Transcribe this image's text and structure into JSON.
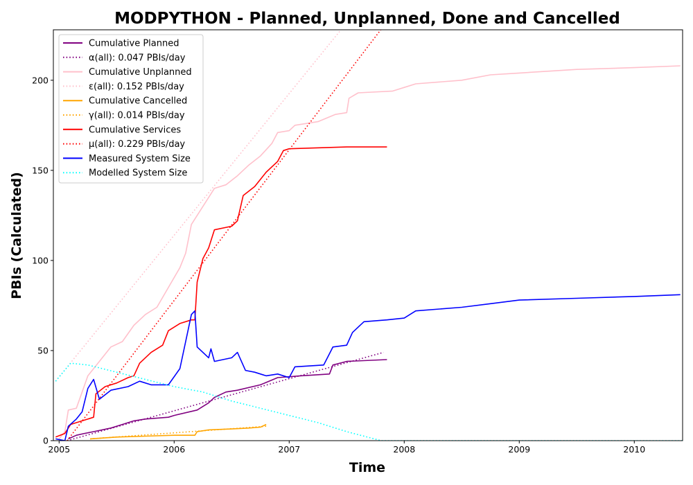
{
  "chart_data": {
    "type": "line",
    "title": "MODPYTHON - Planned, Unplanned, Done  and Cancelled",
    "xlabel": "Time",
    "ylabel": "PBIs (Calculated)",
    "xlim": [
      2004.95,
      2010.42
    ],
    "ylim": [
      0,
      228
    ],
    "x_ticks": [
      2005,
      2006,
      2007,
      2008,
      2009,
      2010
    ],
    "x_tick_labels": [
      "2005",
      "2006",
      "2007",
      "2008",
      "2009",
      "2010"
    ],
    "y_ticks": [
      0,
      50,
      100,
      150,
      200
    ],
    "y_tick_labels": [
      "0",
      "50",
      "100",
      "150",
      "200"
    ],
    "grid": false,
    "legend_position": "top-left",
    "series": [
      {
        "name": "Cumulative Planned",
        "color": "#800080",
        "style": "solid",
        "points": [
          [
            2005.08,
            1
          ],
          [
            2005.15,
            3
          ],
          [
            2005.22,
            4
          ],
          [
            2005.3,
            5
          ],
          [
            2005.45,
            7
          ],
          [
            2005.55,
            9
          ],
          [
            2005.65,
            11
          ],
          [
            2005.75,
            12
          ],
          [
            2005.95,
            13
          ],
          [
            2006.0,
            14
          ],
          [
            2006.2,
            17
          ],
          [
            2006.3,
            21
          ],
          [
            2006.35,
            24
          ],
          [
            2006.45,
            27
          ],
          [
            2006.55,
            28
          ],
          [
            2006.75,
            31
          ],
          [
            2006.9,
            35
          ],
          [
            2007.1,
            36
          ],
          [
            2007.35,
            37
          ],
          [
            2007.38,
            42
          ],
          [
            2007.5,
            44
          ],
          [
            2007.85,
            45
          ]
        ]
      },
      {
        "name": "α(all): 0.047 PBIs/day",
        "color": "#800080",
        "style": "dotted",
        "points": [
          [
            2005.07,
            0
          ],
          [
            2007.82,
            49
          ]
        ]
      },
      {
        "name": "Cumulative Unplanned",
        "color": "#ffc0cb",
        "style": "solid",
        "points": [
          [
            2005.0,
            1
          ],
          [
            2005.05,
            5
          ],
          [
            2005.08,
            17
          ],
          [
            2005.15,
            18
          ],
          [
            2005.2,
            27
          ],
          [
            2005.25,
            36
          ],
          [
            2005.35,
            44
          ],
          [
            2005.45,
            52
          ],
          [
            2005.55,
            55
          ],
          [
            2005.65,
            64
          ],
          [
            2005.75,
            70
          ],
          [
            2005.85,
            74
          ],
          [
            2005.95,
            85
          ],
          [
            2006.05,
            96
          ],
          [
            2006.1,
            104
          ],
          [
            2006.15,
            120
          ],
          [
            2006.25,
            130
          ],
          [
            2006.3,
            135
          ],
          [
            2006.35,
            140
          ],
          [
            2006.45,
            142
          ],
          [
            2006.55,
            147
          ],
          [
            2006.65,
            153
          ],
          [
            2006.75,
            158
          ],
          [
            2006.85,
            165
          ],
          [
            2006.9,
            171
          ],
          [
            2007.0,
            172
          ],
          [
            2007.05,
            175
          ],
          [
            2007.25,
            177
          ],
          [
            2007.4,
            181
          ],
          [
            2007.5,
            182
          ],
          [
            2007.52,
            190
          ],
          [
            2007.6,
            193
          ],
          [
            2007.9,
            194
          ],
          [
            2008.0,
            196
          ],
          [
            2008.1,
            198
          ],
          [
            2008.5,
            200
          ],
          [
            2008.75,
            203
          ],
          [
            2009.0,
            204
          ],
          [
            2009.5,
            206
          ],
          [
            2010.0,
            207
          ],
          [
            2010.4,
            208
          ]
        ]
      },
      {
        "name": "ε(all): 0.152 PBIs/day",
        "color": "#ffc0cb",
        "style": "dotted",
        "points": [
          [
            2004.97,
            33
          ],
          [
            2007.45,
            228
          ]
        ]
      },
      {
        "name": "Cumulative Cancelled",
        "color": "#ffa500",
        "style": "solid",
        "points": [
          [
            2005.27,
            1
          ],
          [
            2005.5,
            2
          ],
          [
            2005.75,
            2.5
          ],
          [
            2006.0,
            3
          ],
          [
            2006.18,
            3
          ],
          [
            2006.2,
            5
          ],
          [
            2006.3,
            6
          ],
          [
            2006.5,
            6.5
          ],
          [
            2006.65,
            7
          ],
          [
            2006.75,
            7.5
          ],
          [
            2006.8,
            9
          ]
        ]
      },
      {
        "name": "γ(all): 0.014 PBIs/day",
        "color": "#ffa500",
        "style": "dotted",
        "points": [
          [
            2005.27,
            1
          ],
          [
            2006.8,
            8
          ]
        ]
      },
      {
        "name": "Cumulative Services",
        "color": "#ff0000",
        "style": "solid",
        "points": [
          [
            2004.97,
            2
          ],
          [
            2005.05,
            4
          ],
          [
            2005.1,
            9
          ],
          [
            2005.2,
            11
          ],
          [
            2005.3,
            13
          ],
          [
            2005.32,
            26
          ],
          [
            2005.4,
            30
          ],
          [
            2005.5,
            32
          ],
          [
            2005.6,
            35
          ],
          [
            2005.65,
            36
          ],
          [
            2005.7,
            43
          ],
          [
            2005.8,
            49
          ],
          [
            2005.9,
            53
          ],
          [
            2005.95,
            61
          ],
          [
            2006.05,
            65
          ],
          [
            2006.15,
            67
          ],
          [
            2006.18,
            67
          ],
          [
            2006.2,
            88
          ],
          [
            2006.25,
            101
          ],
          [
            2006.3,
            107
          ],
          [
            2006.35,
            117
          ],
          [
            2006.5,
            119
          ],
          [
            2006.55,
            122
          ],
          [
            2006.6,
            136
          ],
          [
            2006.7,
            141
          ],
          [
            2006.8,
            149
          ],
          [
            2006.9,
            155
          ],
          [
            2006.95,
            161
          ],
          [
            2007.0,
            162
          ],
          [
            2007.5,
            163
          ],
          [
            2007.85,
            163
          ]
        ]
      },
      {
        "name": "μ(all): 0.229 PBIs/day",
        "color": "#ff0000",
        "style": "dotted",
        "points": [
          [
            2005.07,
            0
          ],
          [
            2007.82,
            230
          ]
        ]
      },
      {
        "name": "Measured System Size",
        "color": "#0000ff",
        "style": "solid",
        "points": [
          [
            2004.97,
            1
          ],
          [
            2005.05,
            0
          ],
          [
            2005.08,
            8
          ],
          [
            2005.15,
            12
          ],
          [
            2005.2,
            16
          ],
          [
            2005.25,
            29
          ],
          [
            2005.3,
            34
          ],
          [
            2005.35,
            23
          ],
          [
            2005.45,
            28
          ],
          [
            2005.6,
            30
          ],
          [
            2005.7,
            33
          ],
          [
            2005.8,
            31
          ],
          [
            2005.95,
            31
          ],
          [
            2006.05,
            40
          ],
          [
            2006.1,
            55
          ],
          [
            2006.15,
            70
          ],
          [
            2006.18,
            72
          ],
          [
            2006.2,
            52
          ],
          [
            2006.3,
            46
          ],
          [
            2006.32,
            51
          ],
          [
            2006.35,
            44
          ],
          [
            2006.5,
            46
          ],
          [
            2006.55,
            49
          ],
          [
            2006.62,
            39
          ],
          [
            2006.7,
            38
          ],
          [
            2006.8,
            36
          ],
          [
            2006.9,
            37
          ],
          [
            2007.0,
            35
          ],
          [
            2007.05,
            41
          ],
          [
            2007.3,
            42
          ],
          [
            2007.38,
            52
          ],
          [
            2007.5,
            53
          ],
          [
            2007.55,
            60
          ],
          [
            2007.6,
            63
          ],
          [
            2007.65,
            66
          ],
          [
            2007.85,
            67
          ],
          [
            2008.0,
            68
          ],
          [
            2008.1,
            72
          ],
          [
            2008.5,
            74
          ],
          [
            2008.75,
            76
          ],
          [
            2009.0,
            78
          ],
          [
            2009.5,
            79
          ],
          [
            2010.0,
            80
          ],
          [
            2010.4,
            81
          ]
        ]
      },
      {
        "name": "Modelled System Size",
        "color": "#00ffff",
        "style": "dotted",
        "points": [
          [
            2004.97,
            33
          ],
          [
            2005.1,
            43
          ],
          [
            2005.25,
            42
          ],
          [
            2005.5,
            38
          ],
          [
            2005.75,
            34
          ],
          [
            2006.0,
            30
          ],
          [
            2006.25,
            27
          ],
          [
            2006.5,
            22
          ],
          [
            2006.75,
            18
          ],
          [
            2007.0,
            14
          ],
          [
            2007.25,
            10
          ],
          [
            2007.5,
            5
          ],
          [
            2007.8,
            0
          ],
          [
            2008.0,
            0
          ],
          [
            2009.0,
            0
          ],
          [
            2010.42,
            0
          ]
        ]
      }
    ]
  }
}
